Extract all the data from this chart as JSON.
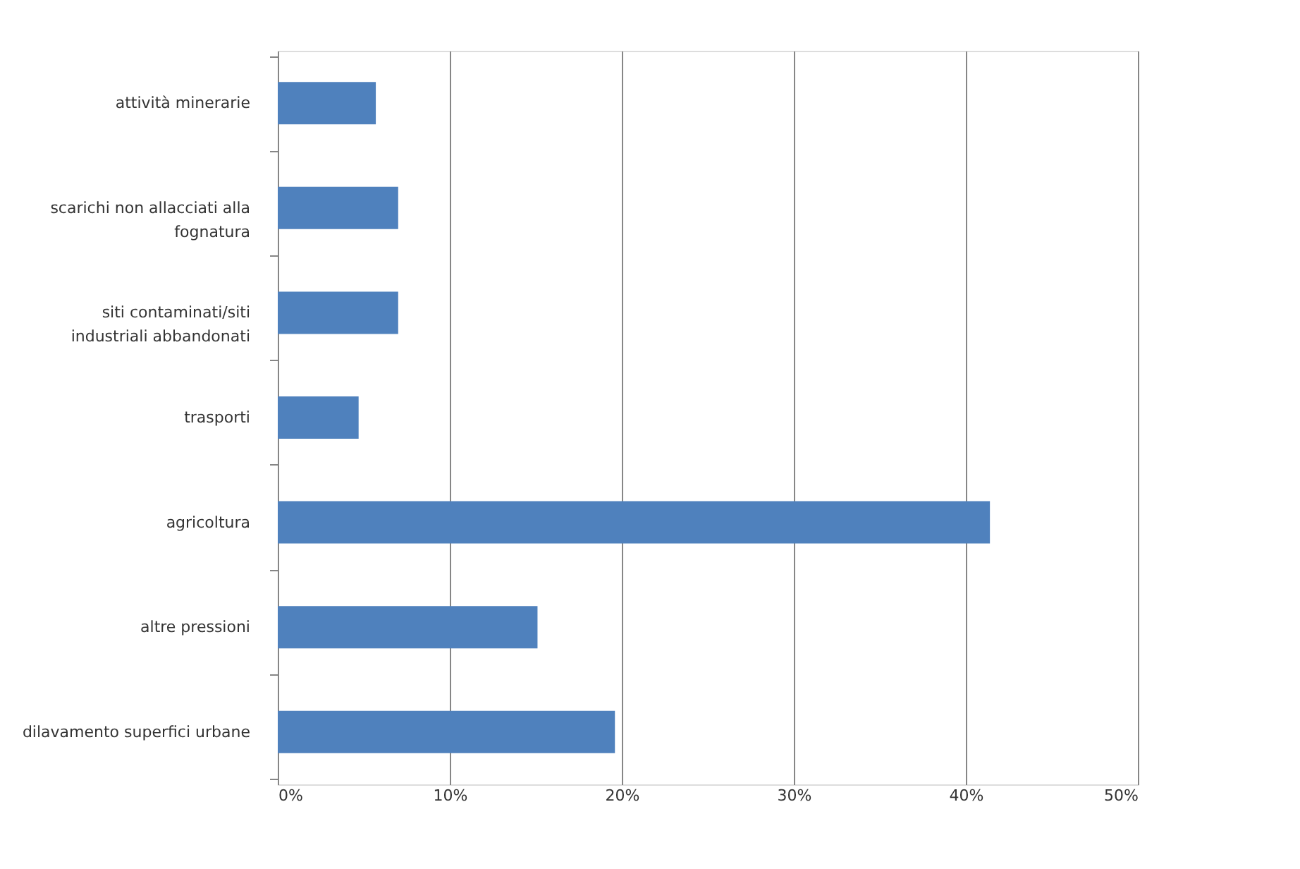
{
  "chart_data": {
    "type": "bar",
    "orientation": "horizontal",
    "categories": [
      "attività minerarie",
      "scarichi non allacciati alla fognatura",
      "siti contaminati/siti industriali abbandonati",
      "trasporti",
      "agricoltura",
      "altre pressioni",
      "dilavamento superfici urbane"
    ],
    "values": [
      5.7,
      7.0,
      7.0,
      4.7,
      41.4,
      15.1,
      19.6
    ],
    "color": "#4f81bd",
    "xlim": [
      0,
      50
    ],
    "xticks": [
      {
        "value": 0,
        "label": "0%"
      },
      {
        "value": 10,
        "label": "10%"
      },
      {
        "value": 20,
        "label": "20%"
      },
      {
        "value": 30,
        "label": "30%"
      },
      {
        "value": 40,
        "label": "40%"
      },
      {
        "value": 50,
        "label": "50%"
      }
    ],
    "grid": "x"
  }
}
